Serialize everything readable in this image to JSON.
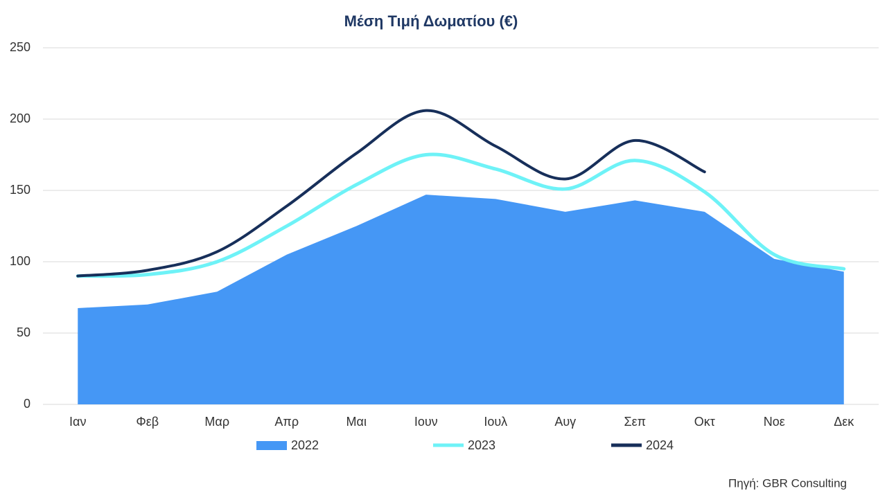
{
  "chart_data": {
    "type": "area_line",
    "title": "Μέση Τιμή Δωματίου (€)",
    "categories": [
      "Ιαν",
      "Φεβ",
      "Μαρ",
      "Απρ",
      "Μαι",
      "Ιουν",
      "Ιουλ",
      "Αυγ",
      "Σεπ",
      "Οκτ",
      "Νοε",
      "Δεκ"
    ],
    "series": [
      {
        "name": "2022",
        "type": "area",
        "color": "#4597f5",
        "values": [
          67.5,
          70,
          79,
          105,
          125,
          147,
          144,
          135,
          143,
          135,
          102,
          93
        ]
      },
      {
        "name": "2023",
        "type": "line",
        "color": "#6ef2f7",
        "values": [
          90,
          91,
          100,
          125,
          154,
          175,
          165,
          151,
          171,
          149,
          105,
          95
        ]
      },
      {
        "name": "2024",
        "type": "line",
        "color": "#172f5a",
        "values": [
          90,
          94,
          107,
          139,
          176,
          206,
          181,
          158,
          185,
          163,
          null,
          null
        ]
      }
    ],
    "ylim": [
      0,
      250
    ],
    "yticks": [
      0,
      50,
      100,
      150,
      200,
      250
    ],
    "grid": true,
    "source": "Πηγή: GBR Consulting"
  }
}
